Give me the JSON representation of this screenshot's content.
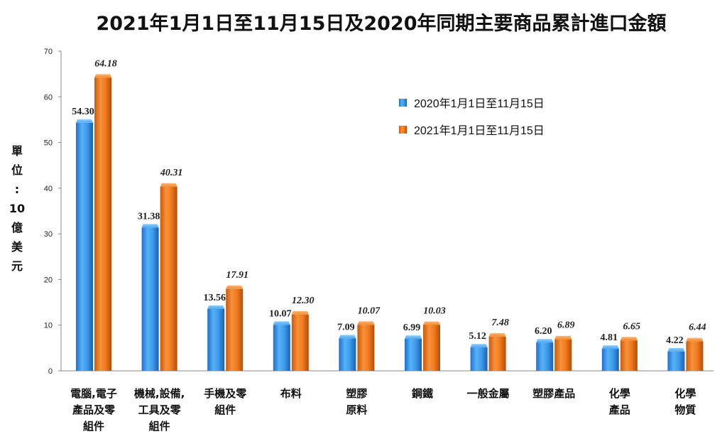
{
  "chart_data": {
    "type": "bar",
    "title": "2021年1月1日至11月15日及2020年同期主要商品累計進口金額",
    "ylabel_chars": [
      "單",
      "位",
      ":",
      "10",
      "億",
      "美",
      "元"
    ],
    "ylim": [
      0,
      70
    ],
    "yticks": [
      0,
      10,
      20,
      30,
      40,
      50,
      60,
      70
    ],
    "categories": [
      [
        "電腦,電子",
        "產品及零",
        "組件"
      ],
      [
        "機械,設備,",
        "工具及零",
        "組件"
      ],
      [
        "手機及零",
        "組件"
      ],
      [
        "布料"
      ],
      [
        "塑膠",
        "原料"
      ],
      [
        "鋼鐵"
      ],
      [
        "一般金屬"
      ],
      [
        "塑膠產品"
      ],
      [
        "化學",
        "產品"
      ],
      [
        "化學",
        "物質"
      ]
    ],
    "series": [
      {
        "name": "2020年1月1日至11月15日",
        "color": "#3d9be9",
        "values": [
          54.3,
          31.38,
          13.56,
          10.07,
          7.09,
          6.99,
          5.12,
          6.2,
          4.81,
          4.22
        ],
        "labels": [
          "54.30",
          "31.38",
          "13.56",
          "10.07",
          "7.09",
          "6.99",
          "5.12",
          "6.20",
          "4.81",
          "4.22"
        ]
      },
      {
        "name": "2021年1月1日至11月15日",
        "color": "#f07a1f",
        "values": [
          64.18,
          40.31,
          17.91,
          12.3,
          10.07,
          10.03,
          7.48,
          6.89,
          6.65,
          6.44
        ],
        "labels": [
          "64.18",
          "40.31",
          "17.91",
          "12.30",
          "10.07",
          "10.03",
          "7.48",
          "6.89",
          "6.65",
          "6.44"
        ]
      }
    ]
  }
}
